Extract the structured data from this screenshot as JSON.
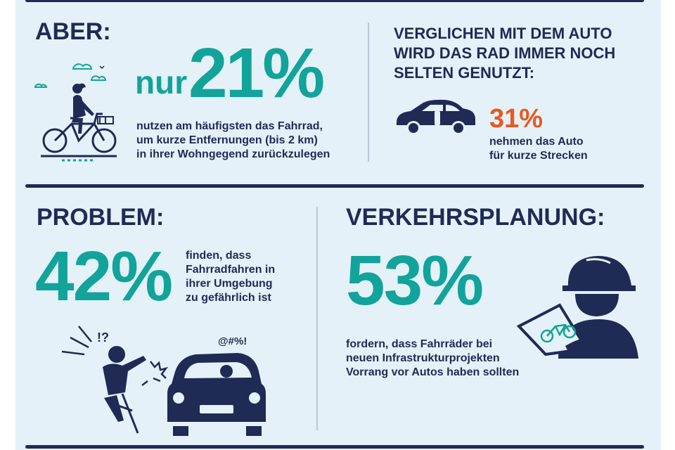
{
  "colors": {
    "navy": "#1f2a55",
    "teal": "#12a39a",
    "orange": "#e8581f",
    "background": "#e4f1f8"
  },
  "aber": {
    "heading": "ABER:",
    "prefix": "nur",
    "percent": "21%",
    "description": [
      "nutzen am häufigsten das Fahrrad,",
      "um kurze Entfernungen (bis 2 km)",
      "in ihrer Wohngegend zurückzulegen"
    ],
    "icon": "cyclist-woman-icon"
  },
  "auto": {
    "heading": [
      "VERGLICHEN MIT DEM AUTO",
      "WIRD DAS RAD IMMER NOCH",
      "SELTEN GENUTZT:"
    ],
    "percent": "31%",
    "description": [
      "nehmen das Auto",
      "für kurze Strecken"
    ],
    "icon": "car-icon"
  },
  "problem": {
    "heading": "PROBLEM:",
    "percent": "42%",
    "description": [
      "finden, dass",
      "Fahrradfahren in",
      "ihrer Umgebung",
      "zu gefährlich ist"
    ],
    "icon_marks": [
      "!?",
      "@#%!"
    ],
    "icon": "cyclist-car-collision-icon"
  },
  "verkehr": {
    "heading": "VERKEHRSPLANUNG:",
    "percent": "53%",
    "description": [
      "fordern, dass Fahrräder bei",
      "neuen Infrastrukturprojekten",
      "Vorrang vor Autos haben sollten"
    ],
    "icon": "planner-with-bike-plan-icon"
  }
}
